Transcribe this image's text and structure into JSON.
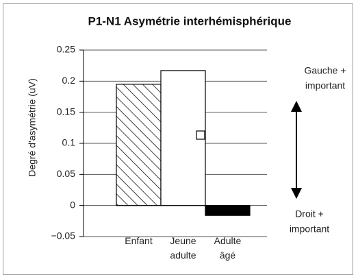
{
  "chart_data": {
    "type": "bar",
    "title": "P1-N1 Asymétrie interhémisphérique",
    "ylabel": "Degré d'asymétrie (uV)",
    "categories": [
      "Enfant",
      "Jeune adulte",
      "Adulte âgé"
    ],
    "values": [
      0.195,
      0.217,
      -0.016
    ],
    "colors": [
      "#ffffff",
      "#ffffff",
      "#000000"
    ],
    "hatch": [
      true,
      false,
      false
    ],
    "ylim": [
      -0.05,
      0.25
    ],
    "yticks": [
      {
        "value": -0.05,
        "label": "−0.05"
      },
      0,
      0.05,
      0.1,
      0.15,
      0.2,
      0.25
    ],
    "grid": true,
    "annotations": [
      [
        "Gauche +",
        "important"
      ],
      [
        "Droit +",
        "important"
      ]
    ]
  }
}
